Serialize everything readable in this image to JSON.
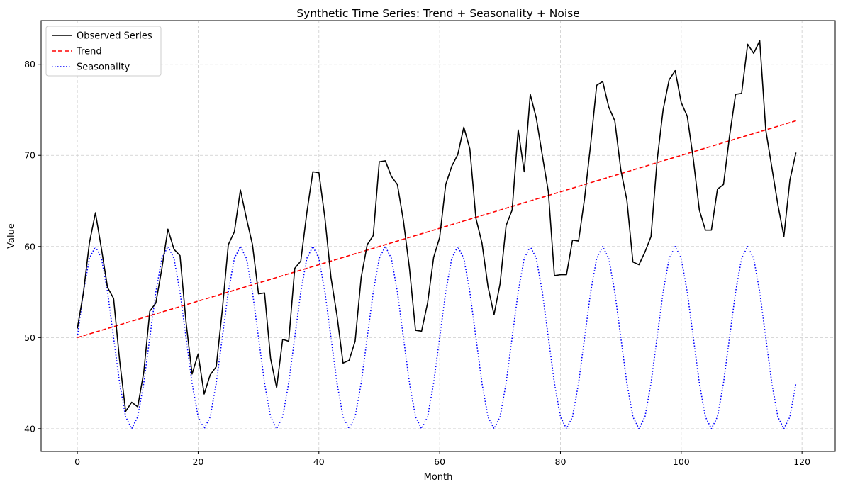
{
  "chart_data": {
    "type": "line",
    "title": "Synthetic Time Series: Trend + Seasonality + Noise",
    "xlabel": "Month",
    "ylabel": "Value",
    "xlim": [
      -6,
      125.5
    ],
    "ylim": [
      37.5,
      84.8
    ],
    "xticks": [
      0,
      20,
      40,
      60,
      80,
      100,
      120
    ],
    "yticks": [
      40,
      50,
      60,
      70,
      80
    ],
    "grid": true,
    "legend_position": "top-left",
    "series": [
      {
        "name": "Observed Series",
        "color": "#000000",
        "style": "solid",
        "values": [
          51.0,
          54.9,
          60.4,
          63.7,
          59.7,
          55.5,
          54.3,
          47.5,
          41.9,
          42.9,
          42.4,
          46.2,
          52.9,
          53.8,
          57.6,
          61.9,
          59.7,
          59.0,
          51.7,
          46.0,
          48.2,
          43.8,
          45.9,
          46.8,
          53.0,
          60.2,
          61.6,
          66.2,
          63.1,
          60.2,
          54.8,
          54.9,
          47.7,
          44.5,
          49.8,
          49.6,
          57.6,
          58.4,
          63.7,
          68.2,
          68.1,
          63.1,
          56.6,
          52.4,
          47.2,
          47.5,
          49.6,
          56.6,
          60.2,
          61.2,
          69.3,
          69.4,
          67.7,
          66.8,
          62.8,
          57.6,
          50.8,
          50.7,
          53.8,
          58.8,
          61.0,
          66.8,
          68.8,
          70.1,
          73.1,
          70.7,
          63.1,
          60.4,
          55.6,
          52.5,
          55.9,
          62.3,
          64.0,
          72.8,
          68.2,
          76.7,
          74.1,
          70.0,
          66.0,
          56.8,
          56.9,
          56.9,
          60.7,
          60.6,
          65.3,
          71.2,
          77.7,
          78.1,
          75.3,
          73.8,
          68.4,
          65.1,
          58.3,
          58.0,
          59.4,
          61.1,
          69.4,
          75.0,
          78.3,
          79.3,
          75.8,
          74.3,
          69.6,
          64.0,
          61.8,
          61.8,
          66.3,
          66.8,
          72.1,
          76.7,
          76.8,
          82.2,
          81.2,
          82.6,
          72.8,
          68.7,
          64.6,
          61.1,
          67.3,
          70.3
        ]
      },
      {
        "name": "Trend",
        "color": "#ff0000",
        "style": "dashed",
        "values": [
          50.0,
          73.8
        ]
      },
      {
        "name": "Seasonality",
        "color": "#0000ff",
        "style": "dotted",
        "values": [
          50.0,
          55.0,
          58.7,
          60.0,
          58.7,
          55.0,
          50.0,
          45.0,
          41.3,
          40.0,
          41.3,
          45.0,
          50.0,
          55.0,
          58.7,
          60.0,
          58.7,
          55.0,
          50.0,
          45.0,
          41.3,
          40.0,
          41.3,
          45.0,
          50.0,
          55.0,
          58.7,
          60.0,
          58.7,
          55.0,
          50.0,
          45.0,
          41.3,
          40.0,
          41.3,
          45.0,
          50.0,
          55.0,
          58.7,
          60.0,
          58.7,
          55.0,
          50.0,
          45.0,
          41.3,
          40.0,
          41.3,
          45.0,
          50.0,
          55.0,
          58.7,
          60.0,
          58.7,
          55.0,
          50.0,
          45.0,
          41.3,
          40.0,
          41.3,
          45.0,
          50.0,
          55.0,
          58.7,
          60.0,
          58.7,
          55.0,
          50.0,
          45.0,
          41.3,
          40.0,
          41.3,
          45.0,
          50.0,
          55.0,
          58.7,
          60.0,
          58.7,
          55.0,
          50.0,
          45.0,
          41.3,
          40.0,
          41.3,
          45.0,
          50.0,
          55.0,
          58.7,
          60.0,
          58.7,
          55.0,
          50.0,
          45.0,
          41.3,
          40.0,
          41.3,
          45.0,
          50.0,
          55.0,
          58.7,
          60.0,
          58.7,
          55.0,
          50.0,
          45.0,
          41.3,
          40.0,
          41.3,
          45.0,
          50.0,
          55.0,
          58.7,
          60.0,
          58.7,
          55.0,
          50.0,
          45.0,
          41.3,
          40.0,
          41.3,
          45.0
        ]
      }
    ]
  }
}
